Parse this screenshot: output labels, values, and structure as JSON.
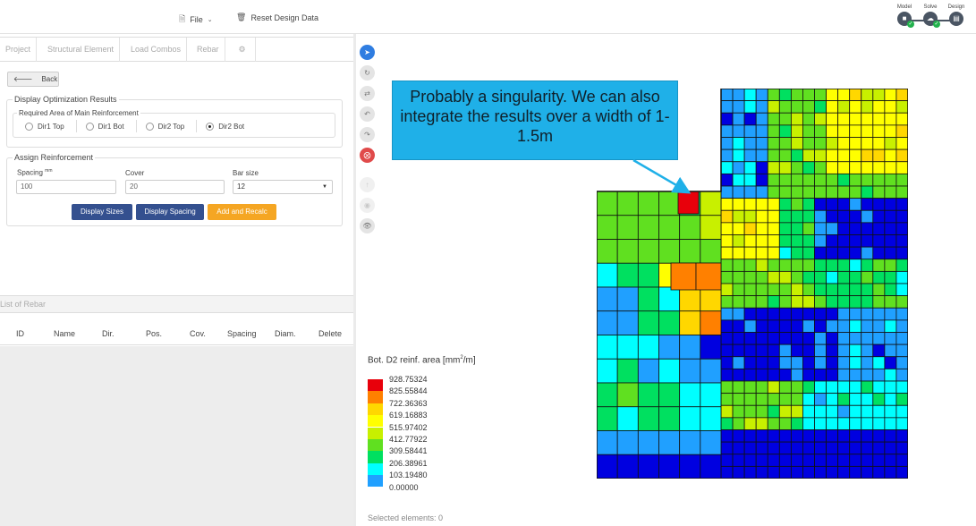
{
  "topbar": {
    "file_label": "File",
    "file_icon": "file-icon",
    "reset_label": "Reset Design Data",
    "reset_icon": "trash-icon",
    "steps": [
      {
        "label": "Model",
        "icon": "model-icon",
        "done": true
      },
      {
        "label": "Solve",
        "icon": "cloud-icon",
        "done": true
      },
      {
        "label": "Design",
        "icon": "document-icon",
        "done": false
      }
    ]
  },
  "tabs": [
    "Project",
    "Structural Element",
    "Load Combos",
    "Rebar",
    "settings-icon"
  ],
  "back_label": "Back",
  "optimization": {
    "title": "Display Optimization Results",
    "subtitle": "Required Area of Main Reinforcement",
    "options": [
      {
        "label": "Dir1 Top",
        "selected": false
      },
      {
        "label": "Dir1 Bot",
        "selected": false
      },
      {
        "label": "Dir2 Top",
        "selected": false
      },
      {
        "label": "Dir2 Bot",
        "selected": true
      }
    ]
  },
  "assign": {
    "title": "Assign Reinforcement",
    "spacing_label": "Spacing",
    "spacing_unit": "mm",
    "spacing_value": "100",
    "cover_label": "Cover",
    "cover_value": "20",
    "barsize_label": "Bar size",
    "barsize_value": "12",
    "buttons": {
      "sizes": "Display Sizes",
      "spacing": "Display Spacing",
      "recalc": "Add and Recalc"
    }
  },
  "rebar_list": {
    "title": "List of Rebar",
    "columns": [
      "ID",
      "Name",
      "Dir.",
      "Pos.",
      "Cov.",
      "Spacing",
      "Diam.",
      "Delete"
    ]
  },
  "annotation": "Probably a singularity. We can also integrate the results over a width of 1-1.5m",
  "legend": {
    "title_prefix": "Bot. D2 reinf. area [mm",
    "title_sup": "2",
    "title_suffix": "/m]",
    "values": [
      "928.75324",
      "825.55844",
      "722.36363",
      "619.16883",
      "515.97402",
      "412.77922",
      "309.58441",
      "206.38961",
      "103.19480",
      "0.00000"
    ],
    "colors": [
      "#e8000b",
      "#ff8000",
      "#ffd700",
      "#ffff00",
      "#c8f000",
      "#60e020",
      "#00e060",
      "#00ffff",
      "#20a0ff",
      "#0000e0"
    ]
  },
  "status": "Selected elements: 0",
  "colors": {
    "accent_blue": "#34508f",
    "accent_orange": "#f5a623",
    "callout": "#1fb0e8"
  }
}
